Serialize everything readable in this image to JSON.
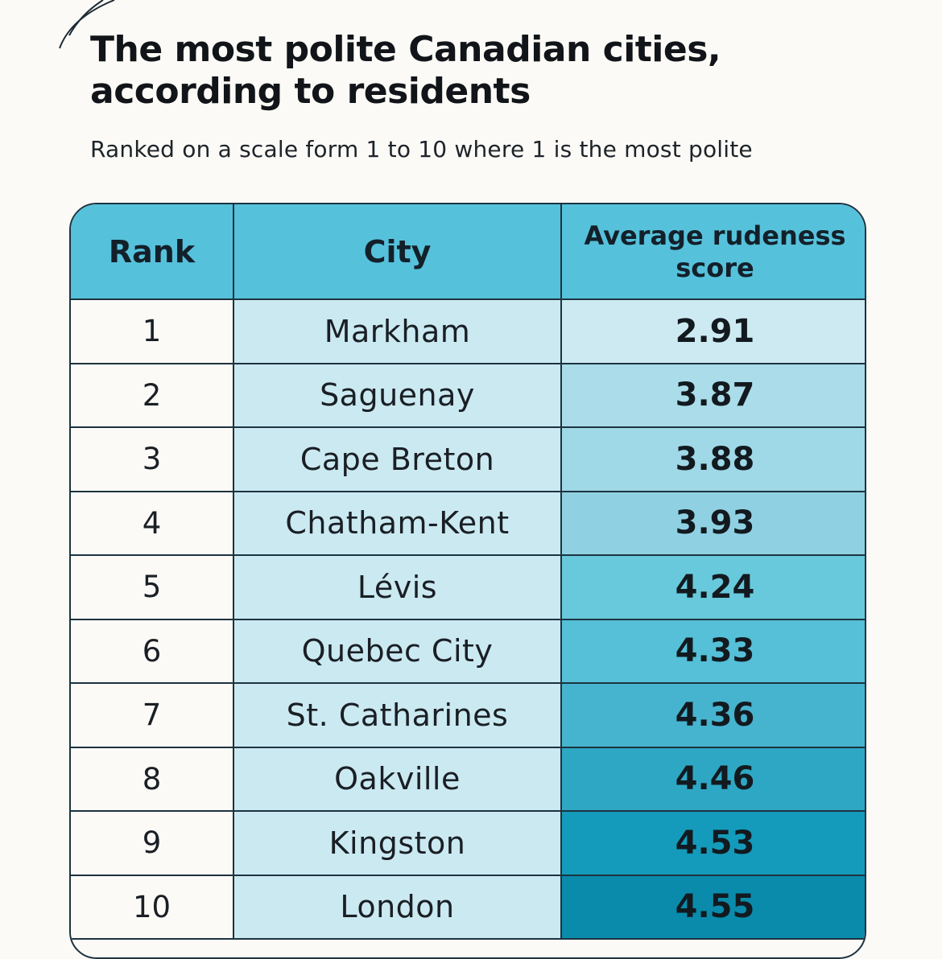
{
  "chart_data": {
    "type": "table",
    "title": "The most polite Canadian cities, according to residents",
    "subtitle": "Ranked on a scale form 1 to 10 where 1 is the most polite",
    "columns": [
      "Rank",
      "City",
      "Average rudeness score"
    ],
    "rows": [
      {
        "rank": "1",
        "city": "Markham",
        "score": "2.91"
      },
      {
        "rank": "2",
        "city": "Saguenay",
        "score": "3.87"
      },
      {
        "rank": "3",
        "city": "Cape Breton",
        "score": "3.88"
      },
      {
        "rank": "4",
        "city": "Chatham-Kent",
        "score": "3.93"
      },
      {
        "rank": "5",
        "city": "Lévis",
        "score": "4.24"
      },
      {
        "rank": "6",
        "city": "Quebec City",
        "score": "4.33"
      },
      {
        "rank": "7",
        "city": "St. Catharines",
        "score": "4.36"
      },
      {
        "rank": "8",
        "city": "Oakville",
        "score": "4.46"
      },
      {
        "rank": "9",
        "city": "Kingston",
        "score": "4.53"
      },
      {
        "rank": "10",
        "city": "London",
        "score": "4.55"
      }
    ],
    "score_colors": [
      "#cdeaf2",
      "#aadde9",
      "#9fd8e6",
      "#8fd1e2",
      "#68c9dc",
      "#55c0d8",
      "#47b4cf",
      "#2ea7c4",
      "#149bbb",
      "#0a8bab"
    ]
  },
  "colors": {
    "header_bg": "#56c1db",
    "city_bg": "#cbe9f1",
    "border": "#1c3340",
    "page_bg": "#fbfaf6"
  }
}
